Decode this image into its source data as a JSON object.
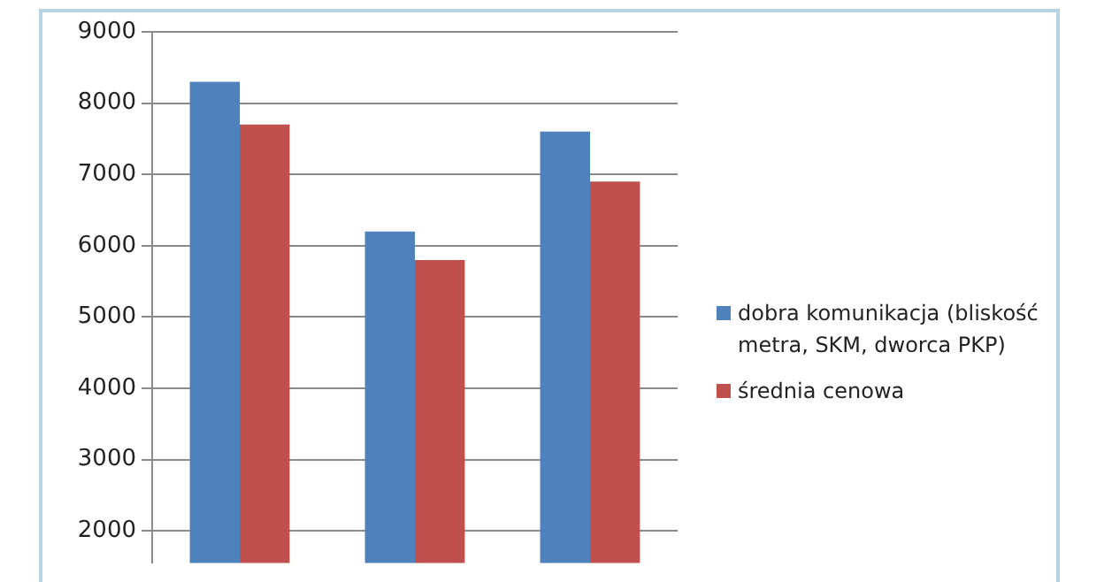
{
  "chart_data": {
    "type": "bar",
    "categories": [
      null,
      null,
      null
    ],
    "series": [
      {
        "name": "dobra komunikacja (bliskość metra, SKM, dworca PKP)",
        "color": "#4f81bd",
        "values": [
          8300,
          6200,
          7600
        ]
      },
      {
        "name": "średnia cenowa",
        "color": "#c0504d",
        "values": [
          7700,
          5800,
          6900
        ]
      }
    ],
    "ylim": [
      1550,
      9000
    ],
    "yticks": [
      2000,
      3000,
      4000,
      5000,
      6000,
      7000,
      8000,
      9000
    ],
    "grid": "y",
    "legend": "right",
    "tick_labels": "y"
  }
}
